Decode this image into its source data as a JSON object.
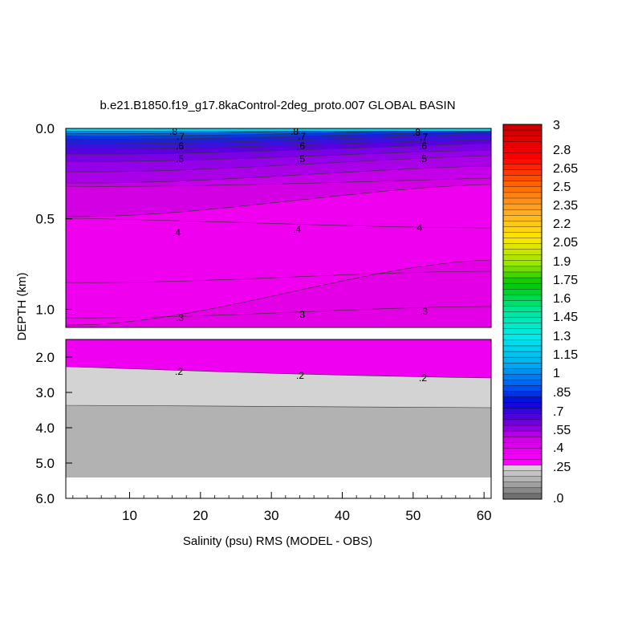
{
  "chart_data": {
    "type": "heatmap",
    "title": "b.e21.B1850.f19_g17.8kaControl-2deg_proto.007 GLOBAL BASIN",
    "xlabel": "Salinity (psu) RMS (MODEL - OBS)",
    "ylabel": "DEPTH (km)",
    "x_ticks": [
      "10",
      "20",
      "30",
      "40",
      "50",
      "60"
    ],
    "x_tick_values": [
      10,
      20,
      30,
      40,
      50,
      60
    ],
    "xlim": [
      1,
      61
    ],
    "upper_panel": {
      "ylim": [
        0.0,
        1.1
      ],
      "y_ticks": [
        "0.0",
        "0.5",
        "1.0"
      ],
      "y_tick_values": [
        0.0,
        0.5,
        1.0
      ]
    },
    "lower_panel": {
      "ylim": [
        1.5,
        6.0
      ],
      "y_ticks": [
        "2.0",
        "3.0",
        "4.0",
        "5.0",
        "6.0"
      ],
      "y_tick_values": [
        2.0,
        3.0,
        4.0,
        5.0,
        6.0
      ]
    },
    "contour_labels": [
      ".8",
      ".7",
      ".6",
      ".5",
      ".4",
      ".3",
      ".2"
    ],
    "colorbar": {
      "labels": [
        "3",
        "2.8",
        "2.65",
        "2.5",
        "2.35",
        "2.2",
        "2.05",
        "1.9",
        "1.75",
        "1.6",
        "1.45",
        "1.3",
        "1.15",
        "1",
        ".85",
        ".7",
        ".55",
        ".4",
        ".25",
        ".0"
      ],
      "label_values": [
        3,
        2.8,
        2.65,
        2.5,
        2.35,
        2.2,
        2.05,
        1.9,
        1.75,
        1.6,
        1.45,
        1.3,
        1.15,
        1,
        0.85,
        0.7,
        0.55,
        0.4,
        0.25,
        0.0
      ]
    },
    "colors": {
      "magenta": "#f000f0",
      "light_gray": "#d3d3d3",
      "mid_gray": "#b0b0b0",
      "violet": "#8a00e0",
      "blue": "#0020e0",
      "sky": "#00a8ee"
    }
  }
}
